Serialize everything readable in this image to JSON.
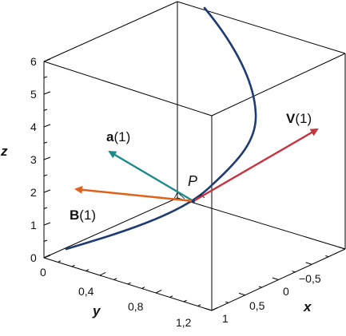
{
  "axes": {
    "z": {
      "name": "z",
      "ticks": [
        "0",
        "1",
        "2",
        "3",
        "4",
        "5",
        "6"
      ]
    },
    "y": {
      "name": "y",
      "ticks": [
        "0",
        "0,4",
        "0,8",
        "1,2"
      ]
    },
    "x": {
      "name": "x",
      "ticks": [
        "1",
        "0,5",
        "0",
        "−0,5"
      ]
    }
  },
  "point": {
    "label": "P"
  },
  "vectors": [
    {
      "id": "a",
      "name": "a",
      "arg": "(1)",
      "color": "#1b8a8a"
    },
    {
      "id": "V",
      "name": "V",
      "arg": "(1)",
      "color": "#c8323c"
    },
    {
      "id": "B",
      "name": "B",
      "arg": "(1)",
      "color": "#e0621a"
    }
  ],
  "curve": {
    "color": "#1f3b73"
  }
}
